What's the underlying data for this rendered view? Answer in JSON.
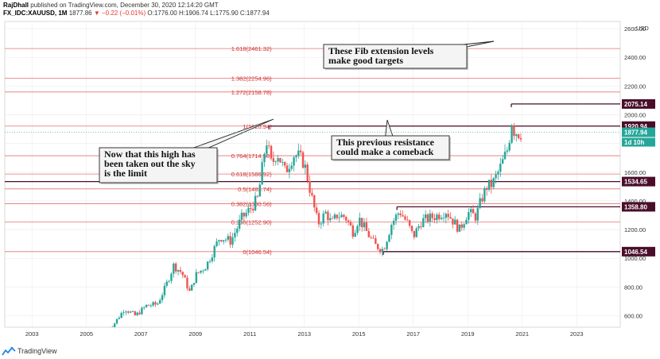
{
  "header": {
    "author": "RajDhall",
    "published": "published on TradingView.com, December 30, 2020 12:14:20 GMT",
    "symbol": "FX_IDC:XAUUSD, 1M",
    "price": "1877.86",
    "change": "▼ −0.22 (−0.01%)",
    "ohlc": "O:1776.00 H:1906.74 L:1775.90 C:1877.94"
  },
  "footer": {
    "brand": "TradingView",
    "logo": "tradingview-logo-icon"
  },
  "chart_data": {
    "type": "candlestick",
    "currency": "USD",
    "ylim": [
      520,
      2650
    ],
    "xlim": [
      2002.0,
      2024.6
    ],
    "y_ticks": [
      600,
      800,
      1000,
      1200,
      1400,
      1600,
      1800,
      2000,
      2200,
      2400,
      2600
    ],
    "y_tick_labels": [
      "600.00",
      "800.00",
      "1000.00",
      "1200.00",
      "1400.00",
      "1600.00",
      "1800.00",
      "2000.00",
      "2200.00",
      "2400.00",
      "2600.00"
    ],
    "x_ticks": [
      2003,
      2005,
      2007,
      2009,
      2011,
      2013,
      2015,
      2017,
      2019,
      2021,
      2023
    ],
    "x_tick_labels": [
      "2003",
      "2005",
      "2007",
      "2009",
      "2011",
      "2013",
      "2015",
      "2017",
      "2019",
      "2021",
      "2023"
    ],
    "price_path": [
      [
        2005.7,
        480
      ],
      [
        2006.0,
        540
      ],
      [
        2006.4,
        650
      ],
      [
        2006.8,
        600
      ],
      [
        2007.2,
        670
      ],
      [
        2007.6,
        680
      ],
      [
        2007.9,
        800
      ],
      [
        2008.2,
        950
      ],
      [
        2008.5,
        900
      ],
      [
        2008.8,
        760
      ],
      [
        2009.0,
        880
      ],
      [
        2009.4,
        950
      ],
      [
        2009.9,
        1150
      ],
      [
        2010.3,
        1120
      ],
      [
        2010.7,
        1280
      ],
      [
        2011.0,
        1340
      ],
      [
        2011.3,
        1420
      ],
      [
        2011.6,
        1830
      ],
      [
        2011.8,
        1650
      ],
      [
        2012.0,
        1740
      ],
      [
        2012.3,
        1600
      ],
      [
        2012.6,
        1720
      ],
      [
        2012.8,
        1710
      ],
      [
        2013.0,
        1660
      ],
      [
        2013.3,
        1400
      ],
      [
        2013.5,
        1240
      ],
      [
        2013.8,
        1320
      ],
      [
        2014.0,
        1240
      ],
      [
        2014.2,
        1300
      ],
      [
        2014.5,
        1290
      ],
      [
        2014.8,
        1180
      ],
      [
        2015.0,
        1280
      ],
      [
        2015.3,
        1180
      ],
      [
        2015.6,
        1090
      ],
      [
        2015.9,
        1060
      ],
      [
        2016.2,
        1240
      ],
      [
        2016.5,
        1330
      ],
      [
        2016.8,
        1240
      ],
      [
        2017.0,
        1150
      ],
      [
        2017.3,
        1260
      ],
      [
        2017.6,
        1280
      ],
      [
        2017.9,
        1300
      ],
      [
        2018.2,
        1330
      ],
      [
        2018.5,
        1250
      ],
      [
        2018.7,
        1200
      ],
      [
        2019.0,
        1320
      ],
      [
        2019.3,
        1290
      ],
      [
        2019.5,
        1410
      ],
      [
        2019.7,
        1500
      ],
      [
        2019.9,
        1515
      ],
      [
        2020.1,
        1590
      ],
      [
        2020.3,
        1680
      ],
      [
        2020.5,
        1780
      ],
      [
        2020.6,
        1970
      ],
      [
        2020.7,
        1890
      ],
      [
        2020.9,
        1870
      ],
      [
        2021.0,
        1878
      ]
    ],
    "fib_levels": [
      {
        "label": "1.618(2461.32)",
        "value": 2461.32
      },
      {
        "label": "1.382(2254.96)",
        "value": 2254.96
      },
      {
        "label": "1.272(2158.78)",
        "value": 2158.78
      },
      {
        "label": "1(1920.94)",
        "value": 1920.94
      },
      {
        "label": "0.764(1714.58)",
        "value": 1714.58
      },
      {
        "label": "0.618(1586.92)",
        "value": 1586.92
      },
      {
        "label": "0.5(1483.74)",
        "value": 1483.74
      },
      {
        "label": "0.382(1380.56)",
        "value": 1380.56
      },
      {
        "label": "0.236(1252.90)",
        "value": 1252.9
      },
      {
        "label": "0(1046.54)",
        "value": 1046.54
      }
    ],
    "fib_x_range": [
      2002.0,
      2024.6
    ],
    "horizontal_lines": [
      {
        "label": "2075.14",
        "value": 2075.14,
        "x_start": 2020.6
      },
      {
        "label": "1920.94",
        "value": 1920.94,
        "x_start": 2011.7
      },
      {
        "label": "1534.65",
        "value": 1534.65,
        "x_start": 2002.0
      },
      {
        "label": "1358.80",
        "value": 1358.8,
        "x_start": 2016.4
      },
      {
        "label": "1046.54",
        "value": 1046.54,
        "x_start": 2015.9
      }
    ],
    "current_price": {
      "label": "1877.94",
      "value": 1877.94,
      "countdown": "1d 10h"
    },
    "annotations": [
      {
        "lines": [
          "These Fib extension levels",
          "make good targets"
        ]
      },
      {
        "lines": [
          "This previous resistance",
          "could make a comeback"
        ]
      },
      {
        "lines": [
          "Now that this high has",
          "been taken out the sky",
          "is the limit"
        ]
      }
    ],
    "colors": {
      "up": "#26a69a",
      "down": "#ef5350",
      "fib": "#e57373",
      "level": "#4a0e2a",
      "grid": "#eeeeee",
      "current": "#26a69a"
    }
  }
}
